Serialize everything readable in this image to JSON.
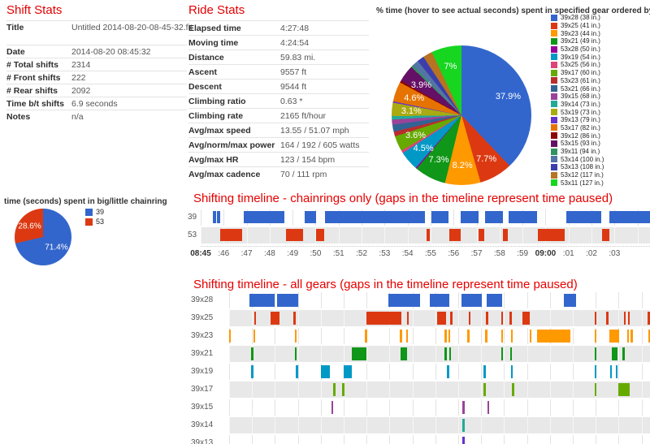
{
  "shift_stats": {
    "title": "Shift Stats",
    "rows": [
      {
        "label": "Title",
        "value": "Untitled 2014-08-20-08-45-32.fit",
        "tall": true
      },
      {
        "label": "Date",
        "value": "2014-08-20 08:45:32"
      },
      {
        "label": "# Total shifts",
        "value": "2314"
      },
      {
        "label": "# Front shifts",
        "value": "222"
      },
      {
        "label": "# Rear shifts",
        "value": "2092"
      },
      {
        "label": "Time b/t shifts",
        "value": "6.9 seconds"
      },
      {
        "label": "Notes",
        "value": "n/a"
      }
    ]
  },
  "ride_stats": {
    "title": "Ride Stats",
    "rows": [
      {
        "label": "Elapsed time",
        "value": "4:27:48"
      },
      {
        "label": "Moving time",
        "value": "4:24:54"
      },
      {
        "label": "Distance",
        "value": "59.83 mi."
      },
      {
        "label": "Ascent",
        "value": "9557 ft"
      },
      {
        "label": "Descent",
        "value": "9544 ft"
      },
      {
        "label": "Climbing ratio",
        "value": "0.63 *"
      },
      {
        "label": "Climbing rate",
        "value": "2165 ft/hour"
      },
      {
        "label": "Avg/max speed",
        "value": "13.55 / 51.07 mph"
      },
      {
        "label": "Avg/norm/max power",
        "value": "164 / 192 / 605 watts"
      },
      {
        "label": "Avg/max HR",
        "value": "123 / 154 bpm"
      },
      {
        "label": "Avg/max cadence",
        "value": "70 / 111 rpm"
      }
    ]
  },
  "chart_data": [
    {
      "id": "gear_pie",
      "type": "pie",
      "title": "% time (hover to see actual seconds) spent in specified gear ordered by gear inches clockwis...",
      "legend_position": "right",
      "slices": [
        {
          "legend": "39x28 (38 in.)",
          "value": 37.9,
          "color": "#3366CC",
          "show_label": true,
          "label_text": "37.9%"
        },
        {
          "legend": "39x25 (41 in.)",
          "value": 7.7,
          "color": "#DC3912",
          "show_label": true,
          "label_text": "7.7%"
        },
        {
          "legend": "39x23 (44 in.)",
          "value": 8.2,
          "color": "#FF9900",
          "show_label": true,
          "label_text": "8.2%"
        },
        {
          "legend": "39x21 (49 in.)",
          "value": 7.3,
          "color": "#109618",
          "show_label": true,
          "label_text": "7.3%"
        },
        {
          "legend": "53x28 (50 in.)",
          "value": 0.3,
          "color": "#990099",
          "show_label": false
        },
        {
          "legend": "39x19 (54 in.)",
          "value": 4.5,
          "color": "#0099C6",
          "show_label": true,
          "label_text": "4.5%"
        },
        {
          "legend": "53x25 (56 in.)",
          "value": 0.6,
          "color": "#DD4477",
          "show_label": false
        },
        {
          "legend": "39x17 (60 in.)",
          "value": 3.6,
          "color": "#66AA00",
          "show_label": true,
          "label_text": "3.6%"
        },
        {
          "legend": "53x23 (61 in.)",
          "value": 1.1,
          "color": "#B82E2E",
          "show_label": false
        },
        {
          "legend": "53x21 (66 in.)",
          "value": 1.6,
          "color": "#316395",
          "show_label": false
        },
        {
          "legend": "39x15 (68 in.)",
          "value": 1.2,
          "color": "#994499",
          "show_label": false
        },
        {
          "legend": "39x14 (73 in.)",
          "value": 0.8,
          "color": "#22AA99",
          "show_label": false
        },
        {
          "legend": "53x19 (73 in.)",
          "value": 3.1,
          "color": "#AAAA11",
          "show_label": true,
          "label_text": "3.1%"
        },
        {
          "legend": "39x13 (79 in.)",
          "value": 0.3,
          "color": "#6633CC",
          "show_label": false
        },
        {
          "legend": "53x17 (82 in.)",
          "value": 4.6,
          "color": "#E67300",
          "show_label": true,
          "label_text": "4.6%"
        },
        {
          "legend": "39x12 (86 in.)",
          "value": 0.5,
          "color": "#8B0707",
          "show_label": false
        },
        {
          "legend": "53x15 (93 in.)",
          "value": 3.9,
          "color": "#651067",
          "show_label": true,
          "label_text": "3.9%"
        },
        {
          "legend": "39x11 (94 in.)",
          "value": 0.5,
          "color": "#329262",
          "show_label": false
        },
        {
          "legend": "53x14 (100 in.)",
          "value": 1.5,
          "color": "#5574A6",
          "show_label": false
        },
        {
          "legend": "53x13 (108 in.)",
          "value": 1.6,
          "color": "#3B3EAC",
          "show_label": false
        },
        {
          "legend": "53x12 (117 in.)",
          "value": 2.2,
          "color": "#B77322",
          "show_label": false
        },
        {
          "legend": "53x11 (127 in.)",
          "value": 7.0,
          "color": "#16D620",
          "show_label": true,
          "label_text": "7%"
        }
      ]
    },
    {
      "id": "chainring_pie",
      "type": "pie",
      "title": "time (seconds) spent in big/little chainring",
      "legend_position": "right",
      "slices": [
        {
          "legend": "39",
          "value": 71.4,
          "color": "#3366CC",
          "show_label": true,
          "label_text": "71.4%"
        },
        {
          "legend": "53",
          "value": 28.6,
          "color": "#DC3912",
          "show_label": true,
          "label_text": "28.6%"
        }
      ]
    },
    {
      "id": "tl_chainrings",
      "type": "timeline",
      "title": "Shifting timeline - chainrings only (gaps in the timeline represent time paused)",
      "axis": {
        "labels": [
          "08:45",
          ":46",
          ":47",
          ":48",
          ":49",
          ":50",
          ":51",
          ":52",
          ":53",
          ":54",
          ":55",
          ":56",
          ":57",
          ":58",
          ":59",
          "09:00",
          ":01",
          ":02",
          ":03"
        ],
        "bold": [
          "08:45",
          "09:00"
        ]
      },
      "rows": [
        {
          "label": "39",
          "color": "#3366CC",
          "bars": [
            [
              2.8,
              3.4
            ],
            [
              3.7,
              4.4
            ],
            [
              9.5,
              18.7
            ],
            [
              23.1,
              25.6
            ],
            [
              27.7,
              50.0
            ],
            [
              51.3,
              55.1
            ],
            [
              57.9,
              61.8
            ],
            [
              63.3,
              67.2
            ],
            [
              68.5,
              74.9
            ],
            [
              81.3,
              89.2
            ],
            [
              91.0,
              100
            ]
          ]
        },
        {
          "label": "53",
          "color": "#DC3912",
          "bars": [
            [
              4.4,
              9.2
            ],
            [
              19.0,
              22.8
            ],
            [
              25.7,
              27.5
            ],
            [
              50.2,
              51.0
            ],
            [
              55.3,
              57.8
            ],
            [
              61.9,
              63.2
            ],
            [
              67.3,
              68.3
            ],
            [
              75.0,
              81.1
            ],
            [
              89.4,
              90.9
            ]
          ]
        }
      ]
    },
    {
      "id": "tl_allgears",
      "type": "timeline",
      "title": "Shifting timeline - all gears (gaps in the timeline represent time paused)",
      "rows": [
        {
          "label": "39x28",
          "color": "#3366CC",
          "bars": [
            [
              4.9,
              10.9
            ],
            [
              11.4,
              16.4
            ],
            [
              37.9,
              45.3
            ],
            [
              47.7,
              52.3
            ],
            [
              55.3,
              60.1
            ],
            [
              61.2,
              64.9
            ],
            [
              79.6,
              82.4
            ]
          ]
        },
        {
          "label": "39x25",
          "color": "#DC3912",
          "bars": [
            [
              5.9,
              6.4
            ],
            [
              9.9,
              11.9
            ],
            [
              15.3,
              15.8
            ],
            [
              32.7,
              41.0
            ],
            [
              42.2,
              42.7
            ],
            [
              49.4,
              51.6
            ],
            [
              52.5,
              53.0
            ],
            [
              56.9,
              57.4
            ],
            [
              61.0,
              61.5
            ],
            [
              64.6,
              65.1
            ],
            [
              66.6,
              67.1
            ],
            [
              69.6,
              71.5
            ],
            [
              86.8,
              87.3
            ],
            [
              89.6,
              90.1
            ],
            [
              93.8,
              94.3
            ],
            [
              94.7,
              95.2
            ],
            [
              99.4,
              100
            ]
          ]
        },
        {
          "label": "39x23",
          "color": "#FF9900",
          "bars": [
            [
              0,
              0.4
            ],
            [
              5.7,
              6.2
            ],
            [
              15.6,
              16.1
            ],
            [
              32.3,
              32.8
            ],
            [
              40.6,
              41.1
            ],
            [
              42.0,
              42.5
            ],
            [
              51.2,
              51.7
            ],
            [
              52.1,
              52.6
            ],
            [
              56.6,
              57.1
            ],
            [
              60.8,
              61.3
            ],
            [
              64.6,
              65.1
            ],
            [
              66.9,
              67.4
            ],
            [
              71.4,
              71.9
            ],
            [
              73.1,
              81.1
            ],
            [
              86.8,
              87.3
            ],
            [
              90.4,
              92.6
            ],
            [
              94.5,
              95.0
            ],
            [
              95.4,
              95.9
            ],
            [
              99.6,
              100
            ]
          ]
        },
        {
          "label": "39x21",
          "color": "#109618",
          "bars": [
            [
              5.3,
              5.8
            ],
            [
              15.6,
              16.1
            ],
            [
              29.2,
              32.7
            ],
            [
              40.7,
              42.3
            ],
            [
              51.2,
              51.7
            ],
            [
              52.3,
              52.8
            ],
            [
              64.6,
              65.1
            ],
            [
              66.7,
              67.2
            ],
            [
              86.8,
              87.3
            ],
            [
              91.0,
              92.3
            ],
            [
              93.5,
              94.0
            ]
          ]
        },
        {
          "label": "39x19",
          "color": "#0099C6",
          "bars": [
            [
              5.3,
              5.8
            ],
            [
              15.9,
              16.4
            ],
            [
              21.8,
              24.0
            ],
            [
              27.2,
              29.2
            ],
            [
              51.8,
              52.3
            ],
            [
              60.5,
              61.0
            ],
            [
              66.9,
              67.4
            ],
            [
              86.8,
              87.3
            ],
            [
              90.5,
              91.0
            ],
            [
              91.8,
              92.3
            ]
          ]
        },
        {
          "label": "39x17",
          "color": "#66AA00",
          "bars": [
            [
              24.7,
              25.2
            ],
            [
              26.9,
              27.4
            ],
            [
              60.5,
              61.0
            ],
            [
              67.2,
              67.7
            ],
            [
              86.8,
              87.3
            ],
            [
              92.4,
              95.1
            ]
          ]
        },
        {
          "label": "39x15",
          "color": "#994499",
          "bars": [
            [
              24.3,
              24.8
            ],
            [
              55.4,
              55.9
            ],
            [
              61.3,
              61.8
            ]
          ]
        },
        {
          "label": "39x14",
          "color": "#22AA99",
          "bars": [
            [
              55.4,
              55.9
            ]
          ]
        },
        {
          "label": "39x13",
          "color": "#6633CC",
          "bars": [
            [
              55.4,
              55.9
            ]
          ]
        }
      ]
    }
  ]
}
